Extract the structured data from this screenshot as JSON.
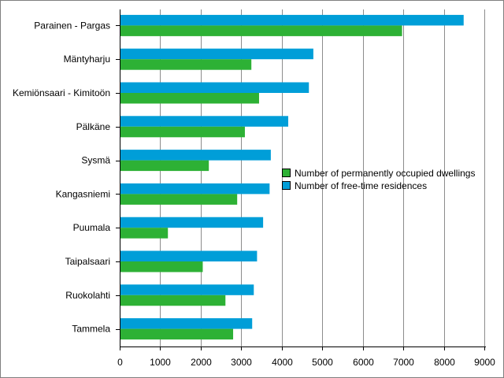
{
  "chart_data": {
    "type": "bar",
    "orientation": "horizontal",
    "categories": [
      "Parainen - Pargas",
      "Mäntyharju",
      "Kemiönsaari - Kimitoön",
      "Pälkäne",
      "Sysmä",
      "Kangasniemi",
      "Puumala",
      "Taipalsaari",
      "Ruokolahti",
      "Tammela"
    ],
    "series": [
      {
        "name": "Number of free-time residences",
        "color": "#009ed8",
        "values": [
          8490,
          4780,
          4670,
          4160,
          3730,
          3700,
          3540,
          3390,
          3310,
          3270
        ]
      },
      {
        "name": "Number of permanently occupied dwellings",
        "color": "#2db135",
        "values": [
          6970,
          3250,
          3440,
          3090,
          2200,
          2900,
          1190,
          2050,
          2610,
          2800
        ]
      }
    ],
    "legend_order": [
      1,
      0
    ],
    "xlim": [
      0,
      9000
    ],
    "xticks": [
      0,
      1000,
      2000,
      3000,
      4000,
      5000,
      6000,
      7000,
      8000,
      9000
    ],
    "grid": "vertical",
    "legend_position": "center-right",
    "title": "",
    "xlabel": "",
    "ylabel": ""
  }
}
